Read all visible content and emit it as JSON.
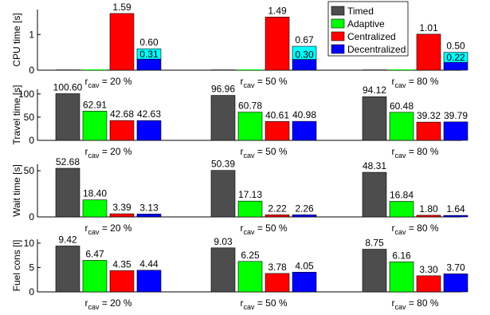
{
  "chart_data": [
    {
      "type": "bar",
      "panel": "cpu",
      "ylabel": "CPU time [s]",
      "ylim": [
        0,
        1.7
      ],
      "yticks": [
        0,
        1
      ],
      "categories": [
        "r_cav = 20 %",
        "r_cav = 50 %",
        "r_cav = 80 %"
      ],
      "series": [
        {
          "name": "Timed",
          "values": [
            0,
            0,
            0
          ],
          "labels": [
            "",
            "",
            ""
          ]
        },
        {
          "name": "Adaptive",
          "values": [
            0,
            0,
            0
          ],
          "labels": [
            "",
            "",
            ""
          ]
        },
        {
          "name": "Centralized",
          "values": [
            1.59,
            1.49,
            1.01
          ],
          "labels": [
            "1.59",
            "1.49",
            "1.01"
          ]
        },
        {
          "name": "Decentralized",
          "values": [
            0.31,
            0.3,
            0.22
          ],
          "labels": [
            "0.31",
            "0.30",
            "0.22"
          ],
          "stack_total": [
            0.6,
            0.67,
            0.5
          ],
          "stack_total_labels": [
            "0.60",
            "0.67",
            "0.50"
          ]
        }
      ]
    },
    {
      "type": "bar",
      "panel": "travel",
      "ylabel": "Travel time [s]",
      "ylim": [
        0,
        110
      ],
      "yticks": [
        0,
        50,
        100
      ],
      "categories": [
        "r_cav = 20 %",
        "r_cav = 50 %",
        "r_cav = 80 %"
      ],
      "series": [
        {
          "name": "Timed",
          "values": [
            100.6,
            96.96,
            94.12
          ],
          "labels": [
            "100.60",
            "96.96",
            "94.12"
          ]
        },
        {
          "name": "Adaptive",
          "values": [
            62.91,
            60.78,
            60.48
          ],
          "labels": [
            "62.91",
            "60.78",
            "60.48"
          ]
        },
        {
          "name": "Centralized",
          "values": [
            42.68,
            40.61,
            39.32
          ],
          "labels": [
            "42.68",
            "40.61",
            "39.32"
          ]
        },
        {
          "name": "Decentralized",
          "values": [
            42.63,
            40.98,
            39.79
          ],
          "labels": [
            "42.63",
            "40.98",
            "39.79"
          ]
        }
      ]
    },
    {
      "type": "bar",
      "panel": "wait",
      "ylabel": "Wait time [s]",
      "ylim": [
        0,
        57
      ],
      "yticks": [
        0,
        50
      ],
      "categories": [
        "r_cav = 20 %",
        "r_cav = 50 %",
        "r_cav = 80 %"
      ],
      "series": [
        {
          "name": "Timed",
          "values": [
            52.68,
            50.39,
            48.31
          ],
          "labels": [
            "52.68",
            "50.39",
            "48.31"
          ]
        },
        {
          "name": "Adaptive",
          "values": [
            18.4,
            17.13,
            16.84
          ],
          "labels": [
            "18.40",
            "17.13",
            "16.84"
          ]
        },
        {
          "name": "Centralized",
          "values": [
            3.39,
            2.22,
            1.8
          ],
          "labels": [
            "3.39",
            "2.22",
            "1.80"
          ]
        },
        {
          "name": "Decentralized",
          "values": [
            3.13,
            2.26,
            1.64
          ],
          "labels": [
            "3.13",
            "2.26",
            "1.64"
          ]
        }
      ]
    },
    {
      "type": "bar",
      "panel": "fuel",
      "ylabel": "Fuel cons [l]",
      "ylim": [
        0,
        10.8
      ],
      "yticks": [
        0,
        5,
        10
      ],
      "categories": [
        "r_cav = 20 %",
        "r_cav = 50 %",
        "r_cav = 80 %"
      ],
      "series": [
        {
          "name": "Timed",
          "values": [
            9.42,
            9.03,
            8.75
          ],
          "labels": [
            "9.42",
            "9.03",
            "8.75"
          ]
        },
        {
          "name": "Adaptive",
          "values": [
            6.47,
            6.25,
            6.16
          ],
          "labels": [
            "6.47",
            "6.25",
            "6.16"
          ]
        },
        {
          "name": "Centralized",
          "values": [
            4.35,
            3.78,
            3.3
          ],
          "labels": [
            "4.35",
            "3.78",
            "3.30"
          ]
        },
        {
          "name": "Decentralized",
          "values": [
            4.44,
            4.05,
            3.7
          ],
          "labels": [
            "4.44",
            "4.05",
            "3.70"
          ]
        }
      ]
    }
  ],
  "legend": {
    "placement": "top-right",
    "entries": [
      "Timed",
      "Adaptive",
      "Centralized",
      "Decentralized"
    ]
  },
  "colors": {
    "Timed": "#4d4d4d",
    "Adaptive": "#00ff00",
    "Centralized": "#ff0000",
    "Decentralized": "#0000ff",
    "stack_top": "#00ffff"
  },
  "group_label": {
    "base": "r",
    "sub": "cav",
    "suffixes": [
      " = 20 %",
      " = 50 %",
      " = 80 %"
    ]
  }
}
